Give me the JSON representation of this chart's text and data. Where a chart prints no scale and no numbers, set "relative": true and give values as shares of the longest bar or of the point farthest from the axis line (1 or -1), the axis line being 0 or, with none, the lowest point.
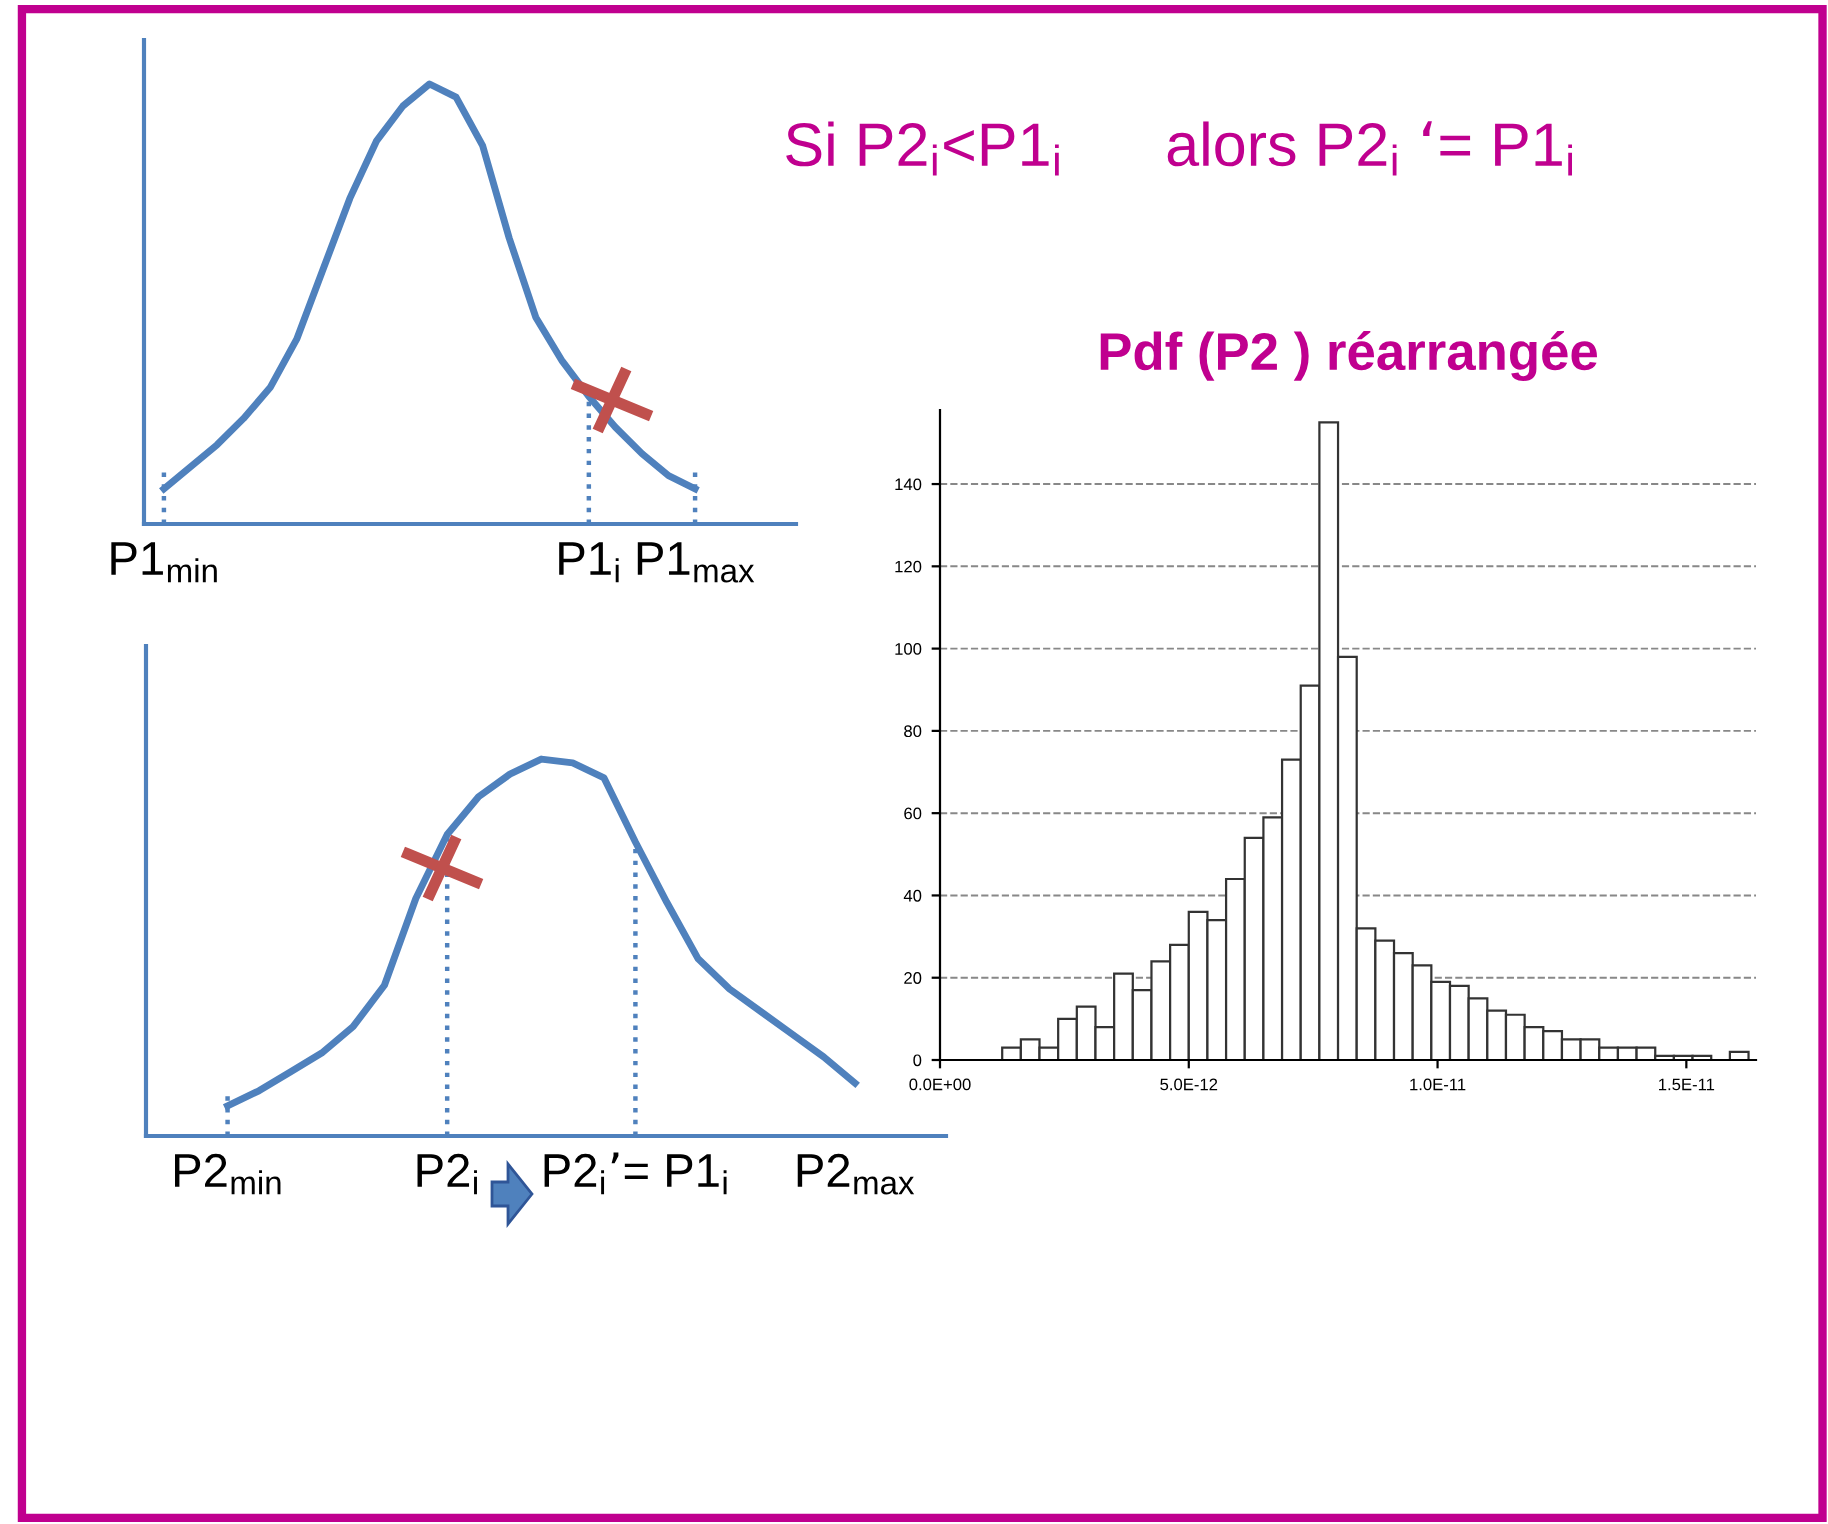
{
  "chart_data": [
    {
      "type": "line",
      "relative": true,
      "annotations": [
        "Si P2$_{i}$<P1$_{i}$      alors P2$_{i}$ ‘= P1$_{i}$"
      ],
      "categories": [
        "P1$_{min}$",
        null,
        null,
        null,
        null,
        null,
        null,
        null,
        null,
        null,
        null,
        null,
        null,
        null,
        null,
        null,
        "P1$_{i}$",
        null,
        null,
        null,
        "P1$_{max}$"
      ],
      "series": [
        {
          "color": "#4f81bd",
          "values": [
            0.08,
            0.13,
            0.18,
            0.24,
            0.31,
            0.42,
            0.58,
            0.74,
            0.87,
            0.95,
            1.0,
            0.97,
            0.86,
            0.65,
            0.47,
            0.37,
            0.29,
            0.22,
            0.16,
            0.11,
            0.08
          ]
        }
      ],
      "ref_lines": [
        {
          "axis": "x",
          "value": "P1$_{min}$",
          "line_style": "dotted",
          "color": "#4f81bd"
        },
        {
          "axis": "x",
          "value": "P1$_{i}$",
          "line_style": "dotted",
          "color": "#4f81bd"
        },
        {
          "axis": "x",
          "value": "P1$_{max}$",
          "line_style": "dotted",
          "color": "#4f81bd"
        }
      ],
      "marker": "none",
      "line_style": "solid",
      "grid": false,
      "legend": false
    },
    {
      "type": "line",
      "relative": true,
      "categories": [
        "P2$_{min}$",
        null,
        null,
        null,
        null,
        null,
        null,
        "P2$_{i}$",
        null,
        null,
        null,
        null,
        null,
        "P2$_{i}$’= P1$_{i}$",
        null,
        null,
        null,
        null,
        null,
        null,
        "P2$_{max}$"
      ],
      "series": [
        {
          "color": "#4f81bd",
          "values": [
            0.08,
            0.12,
            0.17,
            0.22,
            0.29,
            0.4,
            0.63,
            0.8,
            0.9,
            0.96,
            1.0,
            0.99,
            0.95,
            0.78,
            0.62,
            0.47,
            0.39,
            0.33,
            0.27,
            0.21,
            0.14
          ]
        }
      ],
      "ref_lines": [
        {
          "axis": "x",
          "value": "P2$_{min}$",
          "line_style": "dotted",
          "color": "#4f81bd"
        },
        {
          "axis": "x",
          "value": "P2$_{i}$",
          "line_style": "dotted",
          "color": "#4f81bd"
        },
        {
          "axis": "x",
          "value": "P2$_{i}$’= P1$_{i}$",
          "line_style": "dotted",
          "color": "#4f81bd"
        }
      ],
      "marker": "none",
      "line_style": "solid",
      "grid": false,
      "legend": false
    },
    {
      "type": "histogram",
      "title": "Pdf (P2 ) réarrangée",
      "color": "#ffffff",
      "bins": [
        1.25e-12,
        1.625e-12,
        2e-12,
        2.375e-12,
        2.75e-12,
        3.125e-12,
        3.5e-12,
        3.875e-12,
        4.25e-12,
        4.625e-12,
        5e-12,
        5.375e-12,
        5.75e-12,
        6.125e-12,
        6.5e-12,
        6.875e-12,
        7.25e-12,
        7.625e-12,
        8e-12,
        8.375e-12,
        8.75e-12,
        9.125e-12,
        9.5e-12,
        9.875e-12,
        1.025e-11,
        1.0625e-11,
        1.1e-11,
        1.1375e-11,
        1.175e-11,
        1.2125e-11,
        1.25e-11,
        1.2875e-11,
        1.325e-11,
        1.3625e-11,
        1.4e-11,
        1.4375e-11,
        1.475e-11,
        1.5125e-11,
        1.55e-11,
        1.5875e-11,
        1.625e-11
      ],
      "values": [
        3,
        5,
        3,
        10,
        13,
        8,
        21,
        17,
        24,
        28,
        36,
        34,
        44,
        54,
        59,
        73,
        91,
        155,
        98,
        32,
        29,
        26,
        23,
        19,
        18,
        15,
        12,
        11,
        8,
        7,
        5,
        5,
        3,
        3,
        3,
        1,
        1,
        1,
        0,
        2
      ],
      "xlim": [
        0,
        1.64e-11
      ],
      "ylim": [
        0,
        158
      ],
      "xticks": [
        {
          "value": 0,
          "label": "0.0E+00"
        },
        {
          "value": 5e-12,
          "label": "5.0E-12"
        },
        {
          "value": 1e-11,
          "label": "1.0E-11"
        },
        {
          "value": 1.5e-11,
          "label": "1.5E-11"
        }
      ],
      "yticks": [
        0,
        20,
        40,
        60,
        80,
        100,
        120,
        140
      ],
      "grid": "y",
      "legend": false
    }
  ]
}
